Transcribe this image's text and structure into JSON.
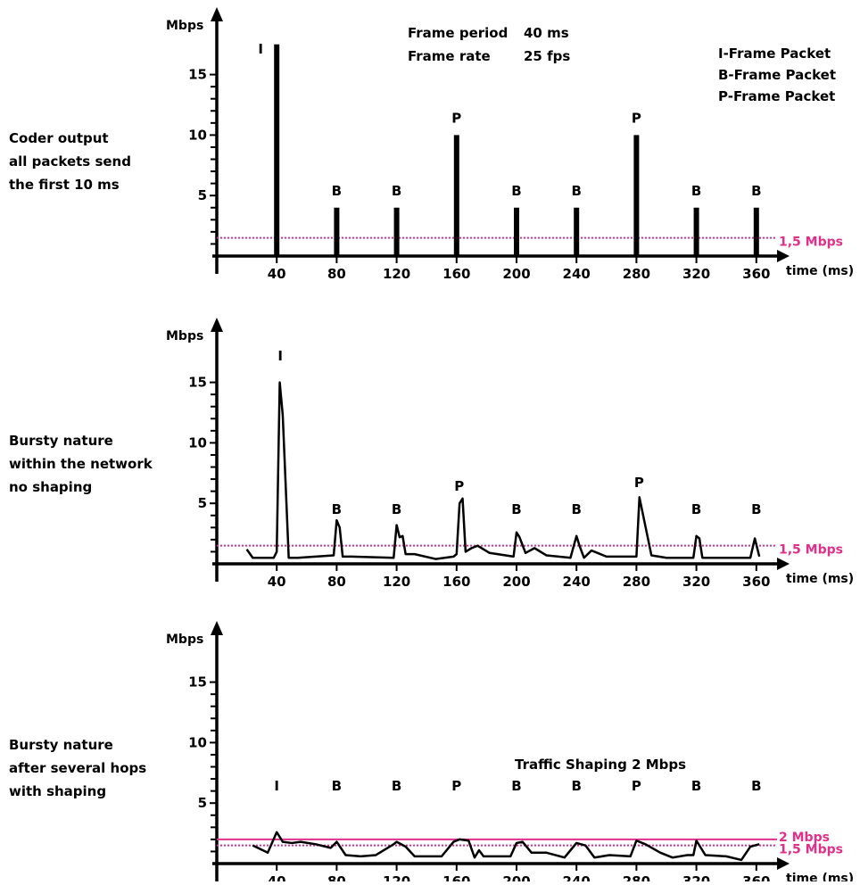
{
  "header_note": {
    "frame_period_label": "Frame period",
    "frame_period_value": "40 ms",
    "frame_rate_label": "Frame rate",
    "frame_rate_value": "25 fps"
  },
  "legend": [
    "I-Frame Packet",
    "B-Frame Packet",
    "P-Frame Packet"
  ],
  "colors": {
    "axis": "#000000",
    "data": "#000000",
    "reference": "#e0308a"
  },
  "chart_data": [
    {
      "type": "bar",
      "side_label": [
        "Coder output",
        "all packets send",
        "the first 10 ms"
      ],
      "ylabel": "Mbps",
      "xlabel": "time (ms)",
      "ylim": [
        0,
        17.5
      ],
      "x_ticks": [
        40,
        80,
        120,
        160,
        200,
        240,
        280,
        320,
        360
      ],
      "y_ticks": [
        5,
        10,
        15
      ],
      "frames": [
        {
          "x": 40,
          "value": 17.5,
          "label": "I"
        },
        {
          "x": 80,
          "value": 4,
          "label": "B"
        },
        {
          "x": 120,
          "value": 4,
          "label": "B"
        },
        {
          "x": 160,
          "value": 10,
          "label": "P"
        },
        {
          "x": 200,
          "value": 4,
          "label": "B"
        },
        {
          "x": 240,
          "value": 4,
          "label": "B"
        },
        {
          "x": 280,
          "value": 10,
          "label": "P"
        },
        {
          "x": 320,
          "value": 4,
          "label": "B"
        },
        {
          "x": 360,
          "value": 4,
          "label": "B"
        }
      ],
      "reference_lines": [
        {
          "value": 1.5,
          "label": "1,5 Mbps",
          "style": "dotted"
        }
      ]
    },
    {
      "type": "line",
      "side_label": [
        "Bursty nature",
        "within the network",
        "no shaping"
      ],
      "ylabel": "Mbps",
      "xlabel": "time (ms)",
      "ylim": [
        0,
        17.5
      ],
      "x_ticks": [
        40,
        80,
        120,
        160,
        200,
        240,
        280,
        320,
        360
      ],
      "y_ticks": [
        5,
        10,
        15
      ],
      "frame_labels": [
        {
          "x": 40,
          "label": "I"
        },
        {
          "x": 80,
          "label": "B"
        },
        {
          "x": 120,
          "label": "B"
        },
        {
          "x": 160,
          "label": "P"
        },
        {
          "x": 200,
          "label": "B"
        },
        {
          "x": 240,
          "label": "B"
        },
        {
          "x": 280,
          "label": "P"
        },
        {
          "x": 320,
          "label": "B"
        },
        {
          "x": 360,
          "label": "B"
        }
      ],
      "x": [
        20,
        24,
        38,
        40,
        42,
        44,
        48,
        54,
        66,
        78,
        80,
        82,
        84,
        90,
        118,
        120,
        122,
        124,
        126,
        132,
        146,
        158,
        160,
        162,
        164,
        166,
        170,
        174,
        182,
        198,
        200,
        202,
        206,
        212,
        220,
        236,
        240,
        242,
        245,
        250,
        260,
        276,
        280,
        282,
        284,
        290,
        300,
        318,
        320,
        322,
        324,
        330,
        340,
        356,
        359,
        362
      ],
      "y": [
        1.2,
        0.5,
        0.5,
        1.0,
        15.0,
        12.3,
        0.5,
        0.5,
        0.6,
        0.7,
        3.6,
        3.0,
        0.6,
        0.6,
        0.5,
        3.2,
        2.2,
        2.3,
        0.8,
        0.8,
        0.4,
        0.6,
        0.8,
        5.0,
        5.4,
        1.0,
        1.3,
        1.5,
        0.9,
        0.6,
        2.6,
        2.2,
        0.9,
        1.3,
        0.7,
        0.5,
        2.3,
        1.5,
        0.5,
        1.1,
        0.6,
        0.6,
        0.6,
        5.5,
        4.3,
        0.7,
        0.5,
        0.5,
        2.3,
        2.1,
        0.5,
        0.5,
        0.5,
        0.5,
        2.1,
        0.6
      ],
      "reference_lines": [
        {
          "value": 1.5,
          "label": "1,5 Mbps",
          "style": "dotted"
        }
      ]
    },
    {
      "type": "line",
      "side_label": [
        "Bursty nature",
        "after several hops",
        "with shaping"
      ],
      "ylabel": "Mbps",
      "xlabel": "time (ms)",
      "ylim": [
        0,
        17.5
      ],
      "x_ticks": [
        40,
        80,
        120,
        160,
        200,
        240,
        280,
        320,
        360
      ],
      "y_ticks": [
        5,
        10,
        15
      ],
      "annotation": "Traffic Shaping 2 Mbps",
      "frame_labels": [
        {
          "x": 40,
          "label": "I"
        },
        {
          "x": 80,
          "label": "B"
        },
        {
          "x": 120,
          "label": "B"
        },
        {
          "x": 160,
          "label": "P"
        },
        {
          "x": 200,
          "label": "B"
        },
        {
          "x": 240,
          "label": "B"
        },
        {
          "x": 280,
          "label": "P"
        },
        {
          "x": 320,
          "label": "B"
        },
        {
          "x": 360,
          "label": "B"
        }
      ],
      "x": [
        24,
        34,
        40,
        44,
        50,
        56,
        66,
        76,
        80,
        86,
        96,
        106,
        118,
        120,
        126,
        132,
        150,
        158,
        162,
        168,
        172,
        175,
        178,
        184,
        196,
        200,
        204,
        210,
        220,
        232,
        240,
        246,
        252,
        262,
        276,
        280,
        286,
        296,
        304,
        314,
        318,
        320,
        326,
        340,
        350,
        356,
        362
      ],
      "y": [
        1.5,
        0.9,
        2.6,
        1.8,
        1.7,
        1.8,
        1.6,
        1.3,
        1.8,
        0.7,
        0.6,
        0.7,
        1.6,
        1.8,
        1.4,
        0.6,
        0.6,
        1.8,
        2.0,
        1.9,
        0.5,
        1.1,
        0.6,
        0.6,
        0.6,
        1.7,
        1.8,
        0.9,
        0.9,
        0.5,
        1.7,
        1.5,
        0.5,
        0.7,
        0.6,
        1.9,
        1.6,
        0.9,
        0.5,
        0.7,
        0.7,
        1.9,
        0.7,
        0.6,
        0.3,
        1.4,
        1.6
      ],
      "reference_lines": [
        {
          "value": 2.0,
          "label": "2 Mbps",
          "style": "solid"
        },
        {
          "value": 1.5,
          "label": "1,5 Mbps",
          "style": "dotted"
        }
      ]
    }
  ]
}
